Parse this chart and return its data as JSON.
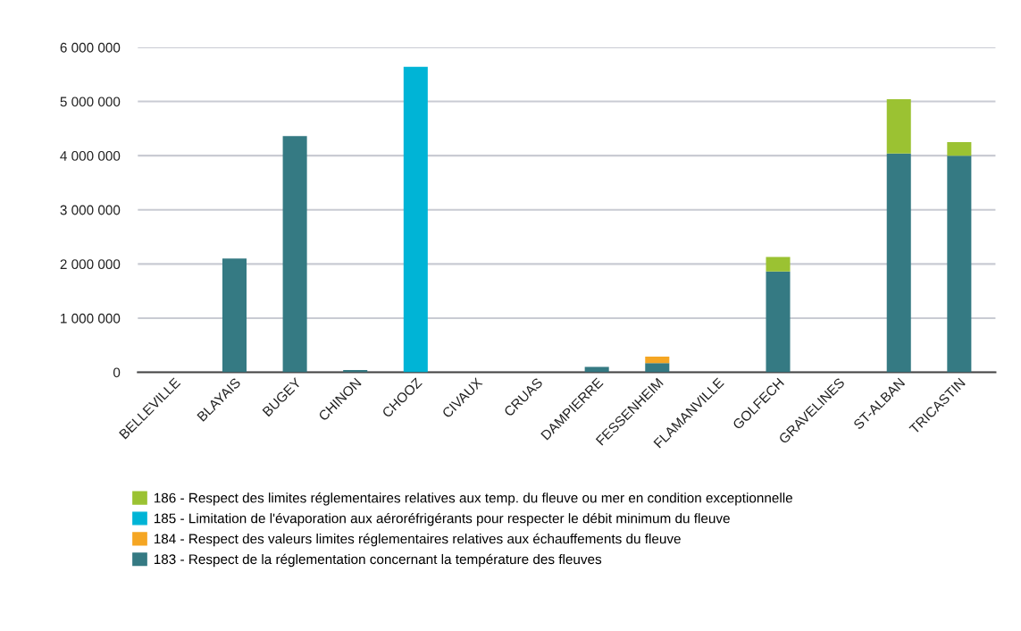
{
  "chart_data": {
    "type": "bar",
    "stacked": true,
    "categories": [
      "BELLEVILLE",
      "BLAYAIS",
      "BUGEY",
      "CHINON",
      "CHOOZ",
      "CIVAUX",
      "CRUAS",
      "DAMPIERRE",
      "FESSENHEIM",
      "FLAMANVILLE",
      "GOLFECH",
      "GRAVELINES",
      "ST-ALBAN",
      "TRICASTIN"
    ],
    "series": [
      {
        "name": "183 - Respect de la réglementation concernant la température des fleuves",
        "color": "#357a83",
        "values": [
          0,
          2100000,
          4360000,
          40000,
          0,
          0,
          0,
          100000,
          170000,
          0,
          1860000,
          0,
          4040000,
          4000000
        ]
      },
      {
        "name": "184 - Respect des valeurs limites réglementaires relatives aux échauffements du fleuve",
        "color": "#f5a623",
        "values": [
          0,
          0,
          0,
          0,
          0,
          0,
          0,
          0,
          120000,
          0,
          0,
          0,
          0,
          0
        ]
      },
      {
        "name": "185 - Limitation de l'évaporation aux aéroréfrigérants pour respecter le débit minimum du fleuve",
        "color": "#00b4d6",
        "values": [
          0,
          0,
          0,
          0,
          5640000,
          0,
          0,
          0,
          0,
          0,
          0,
          0,
          0,
          0
        ]
      },
      {
        "name": "186 - Respect des limites réglementaires relatives aux temp. du fleuve ou mer en condition exceptionnelle",
        "color": "#9bc232",
        "values": [
          0,
          0,
          0,
          0,
          0,
          0,
          0,
          0,
          0,
          0,
          270000,
          0,
          1000000,
          250000
        ]
      }
    ],
    "ylim": [
      0,
      6000000
    ],
    "yticks": [
      {
        "value": 0,
        "label": "0"
      },
      {
        "value": 1000000,
        "label": "1 000 000"
      },
      {
        "value": 2000000,
        "label": "2 000 000"
      },
      {
        "value": 3000000,
        "label": "3 000 000"
      },
      {
        "value": 4000000,
        "label": "4 000 000"
      },
      {
        "value": 5000000,
        "label": "5 000 000"
      },
      {
        "value": 6000000,
        "label": "6 000 000"
      }
    ],
    "grid": "y",
    "legend": "bottom"
  }
}
